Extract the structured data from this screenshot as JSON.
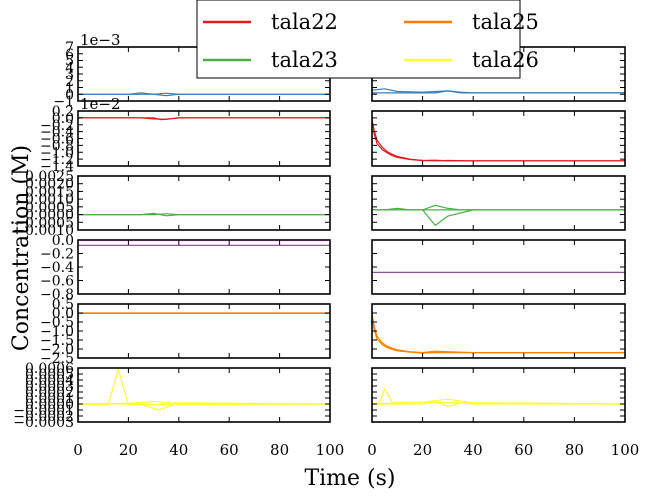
{
  "chart_data": {
    "type": "line",
    "xlabel": "Time (s)",
    "ylabel": "Concentration (M)",
    "x_ticks": [
      "0",
      "20",
      "40",
      "60",
      "80",
      "100"
    ],
    "xlim": [
      0,
      100
    ],
    "legend": {
      "placement": "top-center",
      "entries": [
        {
          "name": "tala22",
          "color": "#e41a1c"
        },
        {
          "name": "tala25",
          "color": "#ff7f00"
        },
        {
          "name": "tala23",
          "color": "#4daf4a"
        },
        {
          "name": "tala26",
          "color": "#ffff33"
        }
      ]
    },
    "rows": [
      {
        "color": "#377eb8",
        "offset_text": "1e−3",
        "ylim": [
          -1,
          7
        ],
        "yticks": [
          "7",
          "6",
          "5",
          "4",
          "3",
          "2",
          "1",
          "0",
          "−1"
        ],
        "left": {
          "series": [
            {
              "x": [
                0,
                20,
                25,
                30,
                35,
                40,
                100
              ],
              "y": [
                0,
                0,
                0.2,
                0,
                -0.2,
                0,
                0
              ]
            },
            {
              "x": [
                0,
                30,
                35,
                40,
                100
              ],
              "y": [
                0,
                0,
                0.15,
                0,
                0
              ]
            }
          ]
        },
        "right": {
          "series": [
            {
              "x": [
                0,
                5,
                10,
                20,
                30,
                35,
                40,
                100
              ],
              "y": [
                0.6,
                0.8,
                0.4,
                0.3,
                0.5,
                0.3,
                0.2,
                0.2
              ]
            },
            {
              "x": [
                0,
                25,
                30,
                35,
                100
              ],
              "y": [
                0.2,
                0.2,
                0.5,
                0.2,
                0.2
              ]
            }
          ]
        }
      },
      {
        "color": "#e41a1c",
        "offset_text": "1e−2",
        "ylim": [
          -1.4,
          0.2
        ],
        "yticks": [
          "0.2",
          "0.0",
          "−0.2",
          "−0.4",
          "−0.6",
          "−0.8",
          "−1.0",
          "−1.2",
          "−1.4"
        ],
        "left": {
          "series": [
            {
              "x": [
                0,
                25,
                30,
                35,
                40,
                100
              ],
              "y": [
                0,
                0,
                -0.03,
                -0.04,
                0,
                0
              ]
            },
            {
              "x": [
                0,
                30,
                33,
                40,
                100
              ],
              "y": [
                0,
                0,
                -0.05,
                0,
                0
              ]
            }
          ]
        },
        "right": {
          "series": [
            {
              "x": [
                0,
                1,
                2,
                4,
                6,
                8,
                10,
                15,
                20,
                25,
                30,
                40,
                50,
                100
              ],
              "y": [
                -0.05,
                -0.4,
                -0.65,
                -0.85,
                -0.98,
                -1.06,
                -1.12,
                -1.2,
                -1.24,
                -1.25,
                -1.24,
                -1.25,
                -1.25,
                -1.25
              ]
            },
            {
              "x": [
                0,
                1,
                2,
                4,
                6,
                8,
                10,
                15,
                20,
                25,
                30,
                40,
                100
              ],
              "y": [
                -0.1,
                -0.5,
                -0.75,
                -0.92,
                -1.02,
                -1.1,
                -1.15,
                -1.21,
                -1.24,
                -1.23,
                -1.25,
                -1.25,
                -1.25
              ]
            }
          ]
        }
      },
      {
        "color": "#4daf4a",
        "offset_text": "",
        "ylim": [
          -0.001,
          0.0025
        ],
        "yticks": [
          "0.0025",
          "0.0020",
          "0.0015",
          "0.0010",
          "0.0005",
          "0.0000",
          "−0.0005",
          "−0.0010"
        ],
        "left": {
          "series": [
            {
              "x": [
                0,
                25,
                30,
                35,
                40,
                100
              ],
              "y": [
                0,
                0,
                8e-05,
                -8e-05,
                0,
                0
              ]
            },
            {
              "x": [
                0,
                30,
                35,
                40,
                100
              ],
              "y": [
                0,
                0,
                5e-05,
                0,
                0
              ]
            }
          ]
        },
        "right": {
          "series": [
            {
              "x": [
                0,
                5,
                10,
                15,
                20,
                100
              ],
              "y": [
                0.0003,
                0.0003,
                0.0004,
                0.0003,
                0.0003,
                0.0003
              ]
            },
            {
              "x": [
                0,
                20,
                25,
                30,
                35,
                40,
                100
              ],
              "y": [
                0.0003,
                0.0003,
                -0.0007,
                -0.0001,
                0.0001,
                0.0003,
                0.0003
              ]
            },
            {
              "x": [
                0,
                20,
                25,
                30,
                35,
                100
              ],
              "y": [
                0.0003,
                0.0003,
                0.0006,
                0.0004,
                0.0003,
                0.0003
              ]
            }
          ]
        }
      },
      {
        "color": "#984ea3",
        "offset_text": "",
        "ylim": [
          -0.9,
          0.1
        ],
        "yticks": [
          "0.0",
          "−0.2",
          "−0.4",
          "−0.6",
          "−0.8"
        ],
        "left": {
          "series": [
            {
              "x": [
                0,
                100
              ],
              "y": [
                0,
                0
              ]
            }
          ]
        },
        "right": {
          "series": [
            {
              "x": [
                0,
                100
              ],
              "y": [
                -0.5,
                -0.5
              ]
            }
          ]
        }
      },
      {
        "color": "#ff7f00",
        "offset_text": "",
        "ylim": [
          -2.5,
          0.5
        ],
        "yticks": [
          "0.5",
          "0.0",
          "−0.5",
          "−1.0",
          "−1.5",
          "−2.0",
          "−2.5"
        ],
        "left": {
          "series": [
            {
              "x": [
                0,
                100
              ],
              "y": [
                0,
                0
              ]
            },
            {
              "x": [
                0,
                100
              ],
              "y": [
                -0.02,
                -0.02
              ]
            }
          ]
        },
        "right": {
          "series": [
            {
              "x": [
                0,
                1,
                2,
                4,
                6,
                8,
                10,
                15,
                20,
                25,
                30,
                40,
                50,
                100
              ],
              "y": [
                -0.1,
                -0.8,
                -1.3,
                -1.65,
                -1.85,
                -1.95,
                -2.05,
                -2.15,
                -2.2,
                -2.12,
                -2.15,
                -2.2,
                -2.2,
                -2.2
              ]
            },
            {
              "x": [
                0,
                1,
                2,
                4,
                6,
                8,
                10,
                15,
                20,
                25,
                30,
                40,
                100
              ],
              "y": [
                -0.2,
                -1.0,
                -1.45,
                -1.75,
                -1.92,
                -2.02,
                -2.1,
                -2.18,
                -2.22,
                -2.2,
                -2.2,
                -2.2,
                -2.2
              ]
            }
          ]
        }
      },
      {
        "color": "#ffff33",
        "offset_text": "",
        "ylim": [
          -0.0003,
          0.0006
        ],
        "yticks": [
          "0.0006",
          "0.0005",
          "0.0004",
          "0.0003",
          "0.0002",
          "0.0001",
          "0.0000",
          "−0.0001",
          "−0.0002",
          "−0.0003"
        ],
        "left": {
          "series": [
            {
              "x": [
                0,
                12,
                16,
                20,
                100
              ],
              "y": [
                0,
                -2e-05,
                0.00058,
                -1e-05,
                0
              ]
            },
            {
              "x": [
                0,
                25,
                32,
                40,
                100
              ],
              "y": [
                0,
                0,
                -0.0001,
                2e-05,
                0
              ]
            },
            {
              "x": [
                0,
                20,
                30,
                40,
                100
              ],
              "y": [
                0,
                1e-05,
                4e-05,
                1e-05,
                0
              ]
            }
          ]
        },
        "right": {
          "series": [
            {
              "x": [
                0,
                3,
                5,
                8,
                100
              ],
              "y": [
                0,
                2e-05,
                0.00025,
                3e-05,
                0
              ]
            },
            {
              "x": [
                0,
                20,
                25,
                30,
                35,
                40,
                100
              ],
              "y": [
                0,
                0,
                4e-05,
                -4e-05,
                2e-05,
                0,
                0
              ]
            },
            {
              "x": [
                0,
                20,
                30,
                40,
                100
              ],
              "y": [
                0,
                3e-05,
                8e-05,
                2e-05,
                0
              ]
            }
          ]
        }
      }
    ]
  }
}
